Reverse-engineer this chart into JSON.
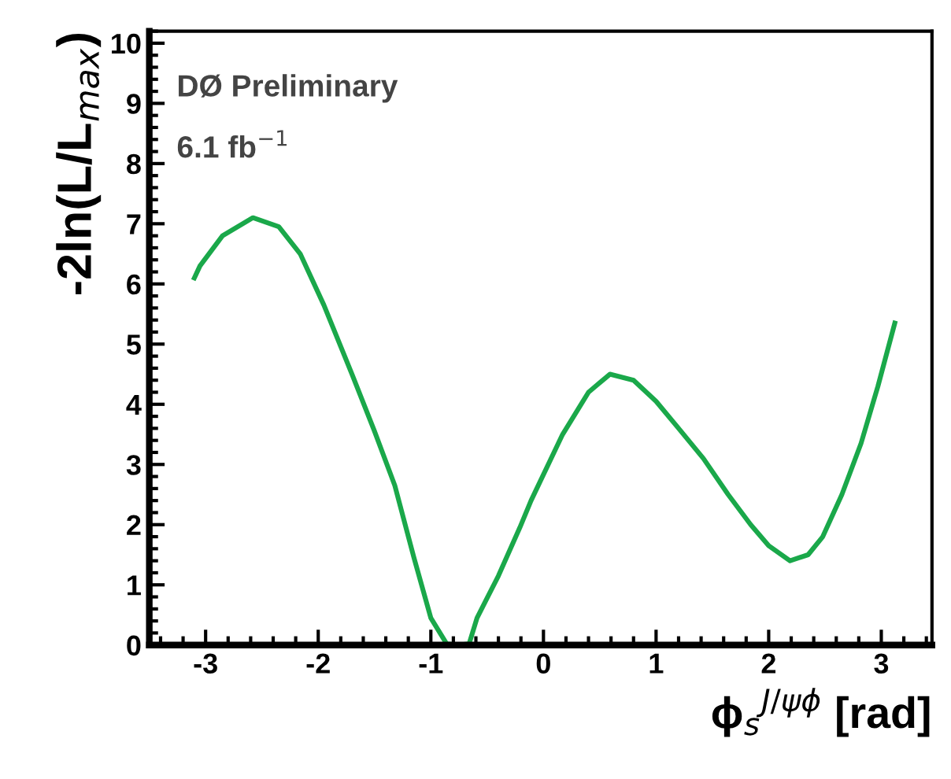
{
  "chart_data": {
    "type": "line",
    "xlabel": "ϕ$_{s}$$^{J/ψϕ}$ [rad]",
    "ylabel": "-2ln(L/L$_{max}$)",
    "annotations": [
      "DØ Preliminary",
      "6.1 fb$^{−1}$"
    ],
    "series": [
      {
        "color": "#1aa84a",
        "x": [
          -3.1,
          -3.05,
          -2.85,
          -2.58,
          -2.35,
          -2.16,
          -1.95,
          -1.7,
          -1.5,
          -1.32,
          -1.15,
          -1.0,
          -0.86,
          -0.76,
          -0.66,
          -0.59,
          -0.4,
          -0.21,
          -0.11,
          0.17,
          0.4,
          0.59,
          0.8,
          1.0,
          1.2,
          1.42,
          1.64,
          1.84,
          2.0,
          2.19,
          2.35,
          2.48,
          2.65,
          2.82,
          2.97,
          3.12
        ],
        "values": [
          6.1,
          6.3,
          6.8,
          7.1,
          6.95,
          6.5,
          5.65,
          4.5,
          3.55,
          2.65,
          1.45,
          0.45,
          0.02,
          0,
          0.02,
          0.45,
          1.15,
          1.95,
          2.4,
          3.5,
          4.2,
          4.5,
          4.4,
          4.05,
          3.6,
          3.1,
          2.5,
          2.0,
          1.65,
          1.4,
          1.5,
          1.8,
          2.5,
          3.35,
          4.3,
          5.35
        ]
      }
    ],
    "xlim": [
      -3.5,
      3.45
    ],
    "ylim": [
      0,
      10.2
    ],
    "xticks": [
      -3,
      -2,
      -1,
      0,
      1,
      2,
      3
    ],
    "yticks": [
      0,
      1,
      2,
      3,
      4,
      5,
      6,
      7,
      8,
      9,
      10
    ],
    "grid": false,
    "legend": false,
    "marker": "none",
    "line_style": "solid"
  }
}
